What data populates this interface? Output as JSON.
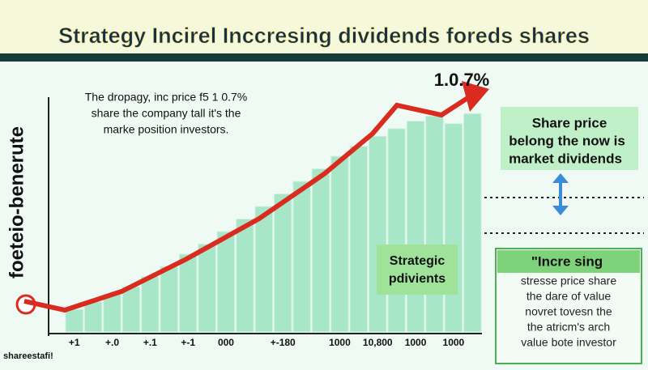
{
  "chart_data": {
    "type": "bar",
    "title": "Strategy Incirel Inccresing dividends foreds shares",
    "y_label": "foeteio-benerute",
    "categories": [
      "+1",
      null,
      "+.0",
      null,
      "+.1",
      null,
      "+-1",
      null,
      "000",
      null,
      null,
      "+-180",
      null,
      null,
      "1000",
      null,
      "10,800",
      null,
      "1000",
      null,
      "1000",
      null
    ],
    "values": [
      9,
      12,
      15,
      18,
      22,
      26,
      31,
      35,
      40,
      45,
      50,
      55,
      60,
      65,
      70,
      74,
      78,
      81,
      84,
      86,
      83,
      87
    ],
    "color": "#a8e6c8",
    "ylim": [
      0,
      100
    ],
    "annotations": {
      "peak": "1.0.7%",
      "intro": [
        "The dropagy, inc price f5 1 0.7%",
        "share the company tall it's the",
        "marke position investors."
      ],
      "share_box": [
        "Share price",
        "belong the now is",
        "market dividends"
      ],
      "strategic": [
        "Strategic",
        "pdivients"
      ],
      "incre_title": "\"Incre sing",
      "incre_body": [
        "stresse price share",
        "the dare of value",
        "novret tovesn the",
        "the atricm's arch",
        "value bote investor"
      ],
      "footer": "shareestafi!"
    }
  }
}
